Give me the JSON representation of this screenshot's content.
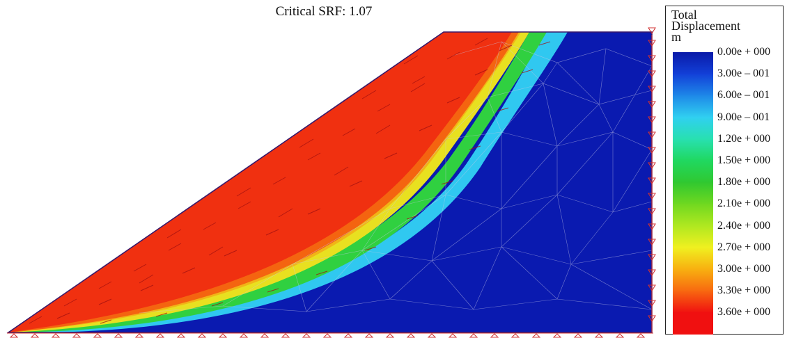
{
  "title": "Critical SRF: 1.07",
  "legend": {
    "title_lines": [
      "Total",
      "Displacement",
      "m"
    ],
    "entries": [
      {
        "label": "0.00e + 000",
        "color": "#0a1aa8"
      },
      {
        "label": "3.00e – 001",
        "color": "#1240d8"
      },
      {
        "label": "6.00e – 001",
        "color": "#1e88e8"
      },
      {
        "label": "9.00e – 001",
        "color": "#30d0f0"
      },
      {
        "label": "1.20e + 000",
        "color": "#28e0b0"
      },
      {
        "label": "1.50e + 000",
        "color": "#20d860"
      },
      {
        "label": "1.80e + 000",
        "color": "#30c830"
      },
      {
        "label": "2.10e + 000",
        "color": "#70d820"
      },
      {
        "label": "2.40e + 000",
        "color": "#b0e820"
      },
      {
        "label": "2.70e + 000",
        "color": "#f0f020"
      },
      {
        "label": "3.00e + 000",
        "color": "#f8b010"
      },
      {
        "label": "3.30e + 000",
        "color": "#f86810"
      },
      {
        "label": "3.60e + 000",
        "color": "#f01010"
      }
    ]
  },
  "colors": {
    "stable_zone": "#0a1ab0",
    "sliding_mass": "#f03010",
    "mesh": "#c8c8e8",
    "vectors": "#a01010",
    "supports": "#d03030"
  }
}
